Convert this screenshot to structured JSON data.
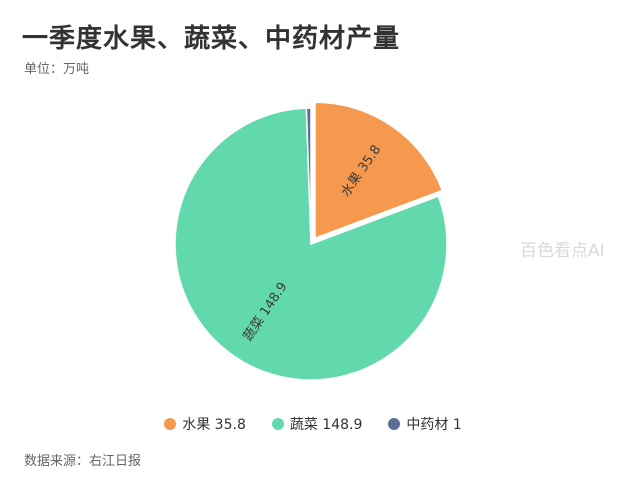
{
  "chart_data": {
    "type": "pie",
    "title": "一季度水果、蔬菜、中药材产量",
    "subtitle": "单位：万吨",
    "categories": [
      "水果",
      "蔬菜",
      "中药材"
    ],
    "values": [
      35.8,
      148.9,
      1
    ],
    "slice_labels": [
      "水果 35.8",
      "蔬菜 148.9",
      "中药材 1"
    ],
    "colors": [
      "#F5994E",
      "#62D9AD",
      "#5B6E96"
    ],
    "legend_position": "bottom",
    "source": "数据来源：右江日报"
  },
  "watermark": "百色看点AI"
}
